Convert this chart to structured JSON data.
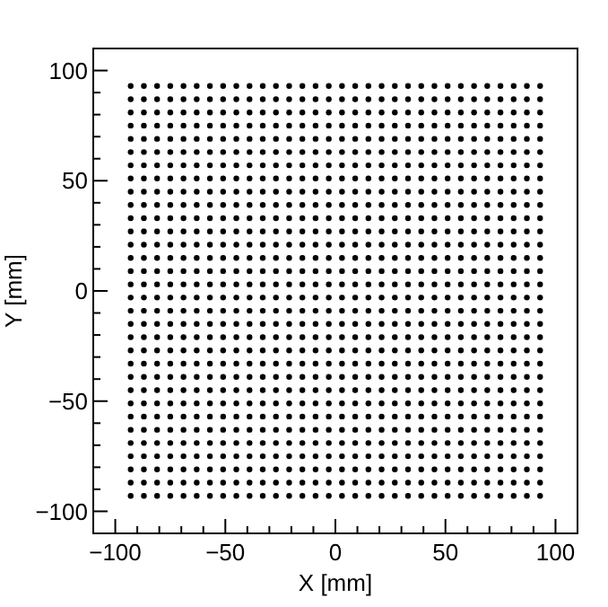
{
  "chart_data": {
    "type": "scatter",
    "xlabel": "X [mm]",
    "ylabel": "Y [mm]",
    "xlim": [
      -110,
      110
    ],
    "ylim": [
      -110,
      110
    ],
    "marker": "circle",
    "xticks": [
      {
        "value": -110,
        "label": null
      },
      -100,
      {
        "value": -90,
        "label": null
      },
      {
        "value": -80,
        "label": null
      },
      {
        "value": -70,
        "label": null
      },
      {
        "value": -60,
        "label": null
      },
      -50,
      {
        "value": -40,
        "label": null
      },
      {
        "value": -30,
        "label": null
      },
      {
        "value": -20,
        "label": null
      },
      {
        "value": -10,
        "label": null
      },
      0,
      {
        "value": 10,
        "label": null
      },
      {
        "value": 20,
        "label": null
      },
      {
        "value": 30,
        "label": null
      },
      {
        "value": 40,
        "label": null
      },
      50,
      {
        "value": 60,
        "label": null
      },
      {
        "value": 70,
        "label": null
      },
      {
        "value": 80,
        "label": null
      },
      {
        "value": 90,
        "label": null
      },
      100,
      {
        "value": 110,
        "label": null
      }
    ],
    "yticks": [
      {
        "value": -110,
        "label": null
      },
      -100,
      {
        "value": -90,
        "label": null
      },
      {
        "value": -80,
        "label": null
      },
      {
        "value": -70,
        "label": null
      },
      {
        "value": -60,
        "label": null
      },
      -50,
      {
        "value": -40,
        "label": null
      },
      {
        "value": -30,
        "label": null
      },
      {
        "value": -20,
        "label": null
      },
      {
        "value": -10,
        "label": null
      },
      0,
      {
        "value": 10,
        "label": null
      },
      {
        "value": 20,
        "label": null
      },
      {
        "value": 30,
        "label": null
      },
      {
        "value": 40,
        "label": null
      },
      50,
      {
        "value": 60,
        "label": null
      },
      {
        "value": 70,
        "label": null
      },
      {
        "value": 80,
        "label": null
      },
      {
        "value": 90,
        "label": null
      },
      100,
      {
        "value": 110,
        "label": null
      }
    ],
    "x": [
      -93,
      -87,
      -81,
      -75,
      -69,
      -63,
      -57,
      -51,
      -45,
      -39,
      -33,
      -27,
      -21,
      -15,
      -9,
      -3,
      3,
      9,
      15,
      21,
      27,
      33,
      39,
      45,
      51,
      57,
      63,
      69,
      75,
      81,
      87,
      93
    ],
    "series": [
      {
        "color": "#000000",
        "values": [
          93,
          93,
          93,
          93,
          93,
          93,
          93,
          93,
          93,
          93,
          93,
          93,
          93,
          93,
          93,
          93,
          93,
          93,
          93,
          93,
          93,
          93,
          93,
          93,
          93,
          93,
          93,
          93,
          93,
          93,
          93,
          93
        ]
      },
      {
        "color": "#000000",
        "values": [
          87,
          87,
          87,
          87,
          87,
          87,
          87,
          87,
          87,
          87,
          87,
          87,
          87,
          87,
          87,
          87,
          87,
          87,
          87,
          87,
          87,
          87,
          87,
          87,
          87,
          87,
          87,
          87,
          87,
          87,
          87,
          87
        ]
      },
      {
        "color": "#000000",
        "values": [
          81,
          81,
          81,
          81,
          81,
          81,
          81,
          81,
          81,
          81,
          81,
          81,
          81,
          81,
          81,
          81,
          81,
          81,
          81,
          81,
          81,
          81,
          81,
          81,
          81,
          81,
          81,
          81,
          81,
          81,
          81,
          81
        ]
      },
      {
        "color": "#000000",
        "values": [
          75,
          75,
          75,
          75,
          75,
          75,
          75,
          75,
          75,
          75,
          75,
          75,
          75,
          75,
          75,
          75,
          75,
          75,
          75,
          75,
          75,
          75,
          75,
          75,
          75,
          75,
          75,
          75,
          75,
          75,
          75,
          75
        ]
      },
      {
        "color": "#000000",
        "values": [
          69,
          69,
          69,
          69,
          69,
          69,
          69,
          69,
          69,
          69,
          69,
          69,
          69,
          69,
          69,
          69,
          69,
          69,
          69,
          69,
          69,
          69,
          69,
          69,
          69,
          69,
          69,
          69,
          69,
          69,
          69,
          69
        ]
      },
      {
        "color": "#000000",
        "values": [
          63,
          63,
          63,
          63,
          63,
          63,
          63,
          63,
          63,
          63,
          63,
          63,
          63,
          63,
          63,
          63,
          63,
          63,
          63,
          63,
          63,
          63,
          63,
          63,
          63,
          63,
          63,
          63,
          63,
          63,
          63,
          63
        ]
      },
      {
        "color": "#000000",
        "values": [
          57,
          57,
          57,
          57,
          57,
          57,
          57,
          57,
          57,
          57,
          57,
          57,
          57,
          57,
          57,
          57,
          57,
          57,
          57,
          57,
          57,
          57,
          57,
          57,
          57,
          57,
          57,
          57,
          57,
          57,
          57,
          57
        ]
      },
      {
        "color": "#000000",
        "values": [
          51,
          51,
          51,
          51,
          51,
          51,
          51,
          51,
          51,
          51,
          51,
          51,
          51,
          51,
          51,
          51,
          51,
          51,
          51,
          51,
          51,
          51,
          51,
          51,
          51,
          51,
          51,
          51,
          51,
          51,
          51,
          51
        ]
      },
      {
        "color": "#000000",
        "values": [
          45,
          45,
          45,
          45,
          45,
          45,
          45,
          45,
          45,
          45,
          45,
          45,
          45,
          45,
          45,
          45,
          45,
          45,
          45,
          45,
          45,
          45,
          45,
          45,
          45,
          45,
          45,
          45,
          45,
          45,
          45,
          45
        ]
      },
      {
        "color": "#000000",
        "values": [
          39,
          39,
          39,
          39,
          39,
          39,
          39,
          39,
          39,
          39,
          39,
          39,
          39,
          39,
          39,
          39,
          39,
          39,
          39,
          39,
          39,
          39,
          39,
          39,
          39,
          39,
          39,
          39,
          39,
          39,
          39,
          39
        ]
      },
      {
        "color": "#000000",
        "values": [
          33,
          33,
          33,
          33,
          33,
          33,
          33,
          33,
          33,
          33,
          33,
          33,
          33,
          33,
          33,
          33,
          33,
          33,
          33,
          33,
          33,
          33,
          33,
          33,
          33,
          33,
          33,
          33,
          33,
          33,
          33,
          33
        ]
      },
      {
        "color": "#000000",
        "values": [
          27,
          27,
          27,
          27,
          27,
          27,
          27,
          27,
          27,
          27,
          27,
          27,
          27,
          27,
          27,
          27,
          27,
          27,
          27,
          27,
          27,
          27,
          27,
          27,
          27,
          27,
          27,
          27,
          27,
          27,
          27,
          27
        ]
      },
      {
        "color": "#000000",
        "values": [
          21,
          21,
          21,
          21,
          21,
          21,
          21,
          21,
          21,
          21,
          21,
          21,
          21,
          21,
          21,
          21,
          21,
          21,
          21,
          21,
          21,
          21,
          21,
          21,
          21,
          21,
          21,
          21,
          21,
          21,
          21,
          21
        ]
      },
      {
        "color": "#000000",
        "values": [
          15,
          15,
          15,
          15,
          15,
          15,
          15,
          15,
          15,
          15,
          15,
          15,
          15,
          15,
          15,
          15,
          15,
          15,
          15,
          15,
          15,
          15,
          15,
          15,
          15,
          15,
          15,
          15,
          15,
          15,
          15,
          15
        ]
      },
      {
        "color": "#000000",
        "values": [
          9,
          9,
          9,
          9,
          9,
          9,
          9,
          9,
          9,
          9,
          9,
          9,
          9,
          9,
          9,
          9,
          9,
          9,
          9,
          9,
          9,
          9,
          9,
          9,
          9,
          9,
          9,
          9,
          9,
          9,
          9,
          9
        ]
      },
      {
        "color": "#000000",
        "values": [
          3,
          3,
          3,
          3,
          3,
          3,
          3,
          3,
          3,
          3,
          3,
          3,
          3,
          3,
          3,
          3,
          3,
          3,
          3,
          3,
          3,
          3,
          3,
          3,
          3,
          3,
          3,
          3,
          3,
          3,
          3,
          3
        ]
      },
      {
        "color": "#000000",
        "values": [
          -3,
          -3,
          -3,
          -3,
          -3,
          -3,
          -3,
          -3,
          -3,
          -3,
          -3,
          -3,
          -3,
          -3,
          -3,
          -3,
          -3,
          -3,
          -3,
          -3,
          -3,
          -3,
          -3,
          -3,
          -3,
          -3,
          -3,
          -3,
          -3,
          -3,
          -3,
          -3
        ]
      },
      {
        "color": "#000000",
        "values": [
          -9,
          -9,
          -9,
          -9,
          -9,
          -9,
          -9,
          -9,
          -9,
          -9,
          -9,
          -9,
          -9,
          -9,
          -9,
          -9,
          -9,
          -9,
          -9,
          -9,
          -9,
          -9,
          -9,
          -9,
          -9,
          -9,
          -9,
          -9,
          -9,
          -9,
          -9,
          -9
        ]
      },
      {
        "color": "#000000",
        "values": [
          -15,
          -15,
          -15,
          -15,
          -15,
          -15,
          -15,
          -15,
          -15,
          -15,
          -15,
          -15,
          -15,
          -15,
          -15,
          -15,
          -15,
          -15,
          -15,
          -15,
          -15,
          -15,
          -15,
          -15,
          -15,
          -15,
          -15,
          -15,
          -15,
          -15,
          -15,
          -15
        ]
      },
      {
        "color": "#000000",
        "values": [
          -21,
          -21,
          -21,
          -21,
          -21,
          -21,
          -21,
          -21,
          -21,
          -21,
          -21,
          -21,
          -21,
          -21,
          -21,
          -21,
          -21,
          -21,
          -21,
          -21,
          -21,
          -21,
          -21,
          -21,
          -21,
          -21,
          -21,
          -21,
          -21,
          -21,
          -21,
          -21
        ]
      },
      {
        "color": "#000000",
        "values": [
          -27,
          -27,
          -27,
          -27,
          -27,
          -27,
          -27,
          -27,
          -27,
          -27,
          -27,
          -27,
          -27,
          -27,
          -27,
          -27,
          -27,
          -27,
          -27,
          -27,
          -27,
          -27,
          -27,
          -27,
          -27,
          -27,
          -27,
          -27,
          -27,
          -27,
          -27,
          -27
        ]
      },
      {
        "color": "#000000",
        "values": [
          -33,
          -33,
          -33,
          -33,
          -33,
          -33,
          -33,
          -33,
          -33,
          -33,
          -33,
          -33,
          -33,
          -33,
          -33,
          -33,
          -33,
          -33,
          -33,
          -33,
          -33,
          -33,
          -33,
          -33,
          -33,
          -33,
          -33,
          -33,
          -33,
          -33,
          -33,
          -33
        ]
      },
      {
        "color": "#000000",
        "values": [
          -39,
          -39,
          -39,
          -39,
          -39,
          -39,
          -39,
          -39,
          -39,
          -39,
          -39,
          -39,
          -39,
          -39,
          -39,
          -39,
          -39,
          -39,
          -39,
          -39,
          -39,
          -39,
          -39,
          -39,
          -39,
          -39,
          -39,
          -39,
          -39,
          -39,
          -39,
          -39
        ]
      },
      {
        "color": "#000000",
        "values": [
          -45,
          -45,
          -45,
          -45,
          -45,
          -45,
          -45,
          -45,
          -45,
          -45,
          -45,
          -45,
          -45,
          -45,
          -45,
          -45,
          -45,
          -45,
          -45,
          -45,
          -45,
          -45,
          -45,
          -45,
          -45,
          -45,
          -45,
          -45,
          -45,
          -45,
          -45,
          -45
        ]
      },
      {
        "color": "#000000",
        "values": [
          -51,
          -51,
          -51,
          -51,
          -51,
          -51,
          -51,
          -51,
          -51,
          -51,
          -51,
          -51,
          -51,
          -51,
          -51,
          -51,
          -51,
          -51,
          -51,
          -51,
          -51,
          -51,
          -51,
          -51,
          -51,
          -51,
          -51,
          -51,
          -51,
          -51,
          -51,
          -51
        ]
      },
      {
        "color": "#000000",
        "values": [
          -57,
          -57,
          -57,
          -57,
          -57,
          -57,
          -57,
          -57,
          -57,
          -57,
          -57,
          -57,
          -57,
          -57,
          -57,
          -57,
          -57,
          -57,
          -57,
          -57,
          -57,
          -57,
          -57,
          -57,
          -57,
          -57,
          -57,
          -57,
          -57,
          -57,
          -57,
          -57
        ]
      },
      {
        "color": "#000000",
        "values": [
          -63,
          -63,
          -63,
          -63,
          -63,
          -63,
          -63,
          -63,
          -63,
          -63,
          -63,
          -63,
          -63,
          -63,
          -63,
          -63,
          -63,
          -63,
          -63,
          -63,
          -63,
          -63,
          -63,
          -63,
          -63,
          -63,
          -63,
          -63,
          -63,
          -63,
          -63,
          -63
        ]
      },
      {
        "color": "#000000",
        "values": [
          -69,
          -69,
          -69,
          -69,
          -69,
          -69,
          -69,
          -69,
          -69,
          -69,
          -69,
          -69,
          -69,
          -69,
          -69,
          -69,
          -69,
          -69,
          -69,
          -69,
          -69,
          -69,
          -69,
          -69,
          -69,
          -69,
          -69,
          -69,
          -69,
          -69,
          -69,
          -69
        ]
      },
      {
        "color": "#000000",
        "values": [
          -75,
          -75,
          -75,
          -75,
          -75,
          -75,
          -75,
          -75,
          -75,
          -75,
          -75,
          -75,
          -75,
          -75,
          -75,
          -75,
          -75,
          -75,
          -75,
          -75,
          -75,
          -75,
          -75,
          -75,
          -75,
          -75,
          -75,
          -75,
          -75,
          -75,
          -75,
          -75
        ]
      },
      {
        "color": "#000000",
        "values": [
          -81,
          -81,
          -81,
          -81,
          -81,
          -81,
          -81,
          -81,
          -81,
          -81,
          -81,
          -81,
          -81,
          -81,
          -81,
          -81,
          -81,
          -81,
          -81,
          -81,
          -81,
          -81,
          -81,
          -81,
          -81,
          -81,
          -81,
          -81,
          -81,
          -81,
          -81,
          -81
        ]
      },
      {
        "color": "#000000",
        "values": [
          -87,
          -87,
          -87,
          -87,
          -87,
          -87,
          -87,
          -87,
          -87,
          -87,
          -87,
          -87,
          -87,
          -87,
          -87,
          -87,
          -87,
          -87,
          -87,
          -87,
          -87,
          -87,
          -87,
          -87,
          -87,
          -87,
          -87,
          -87,
          -87,
          -87,
          -87,
          -87
        ]
      },
      {
        "color": "#000000",
        "values": [
          -93,
          -93,
          -93,
          -93,
          -93,
          -93,
          -93,
          -93,
          -93,
          -93,
          -93,
          -93,
          -93,
          -93,
          -93,
          -93,
          -93,
          -93,
          -93,
          -93,
          -93,
          -93,
          -93,
          -93,
          -93,
          -93,
          -93,
          -93,
          -93,
          -93,
          -93,
          -93
        ]
      }
    ]
  }
}
